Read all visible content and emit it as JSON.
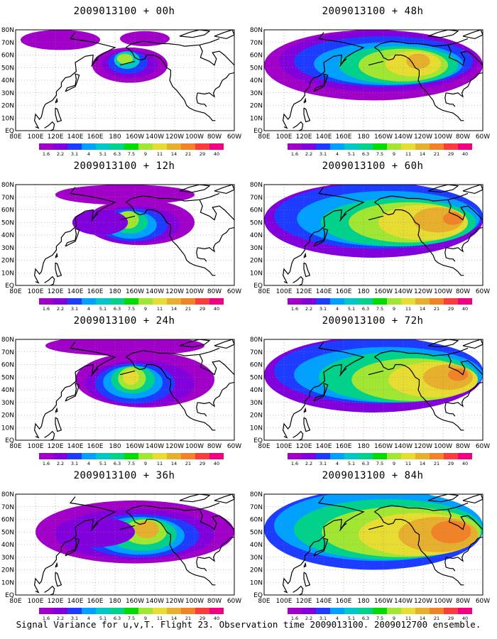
{
  "chart_data": [
    {
      "type": "heatmap",
      "title": "2009013100 + 00h",
      "lead_hours": 0,
      "peak_region": "180-160W, 45-65N",
      "peak_level": 9
    },
    {
      "type": "heatmap",
      "title": "2009013100 + 12h",
      "lead_hours": 12,
      "peak_region": "170W-150W, 35-60N",
      "peak_level": 14
    },
    {
      "type": "heatmap",
      "title": "2009013100 + 24h",
      "lead_hours": 24,
      "peak_region": "170W-140W, 30-60N",
      "peak_level": 14
    },
    {
      "type": "heatmap",
      "title": "2009013100 + 36h",
      "lead_hours": 36,
      "peak_region": "160W-130W, 40-60N",
      "peak_level": 21
    },
    {
      "type": "heatmap",
      "title": "2009013100 + 48h",
      "lead_hours": 48,
      "peak_region": "150W-110W, 35-60N",
      "peak_level": 21
    },
    {
      "type": "heatmap",
      "title": "2009013100 + 60h",
      "lead_hours": 60,
      "peak_region": "140W-80W, 30-60N",
      "peak_level": 21
    },
    {
      "type": "heatmap",
      "title": "2009013100 + 72h",
      "lead_hours": 72,
      "peak_region": "140W-80W, 30-60N",
      "peak_level": 21
    },
    {
      "type": "heatmap",
      "title": "2009013100 + 84h",
      "lead_hours": 84,
      "peak_region": "140W-70W, 30-60N",
      "peak_level": 21
    }
  ],
  "axes": {
    "x_ticks": [
      "80E",
      "100E",
      "120E",
      "140E",
      "160E",
      "180",
      "160W",
      "140W",
      "120W",
      "100W",
      "80W",
      "60W"
    ],
    "y_ticks": [
      "EQ",
      "10N",
      "20N",
      "30N",
      "40N",
      "50N",
      "60N",
      "70N",
      "80N"
    ],
    "grid": true
  },
  "colorbar": {
    "levels": [
      "1.6",
      "2.2",
      "3.1",
      "4",
      "5.1",
      "6.3",
      "7.5",
      "9",
      "11",
      "14",
      "21",
      "29",
      "40"
    ],
    "colors": [
      "#a000c8",
      "#8200dc",
      "#1e3cff",
      "#00a0ff",
      "#00c8c8",
      "#00d28c",
      "#00dc00",
      "#a0e632",
      "#e6dc32",
      "#e6af2d",
      "#f08228",
      "#fa3c3c",
      "#f00082"
    ]
  },
  "landmass_color": "#000000",
  "caption": "Signal Variance for u,v,T. Flight 23. Observation time 2009013100. 2009012700 ensemble."
}
